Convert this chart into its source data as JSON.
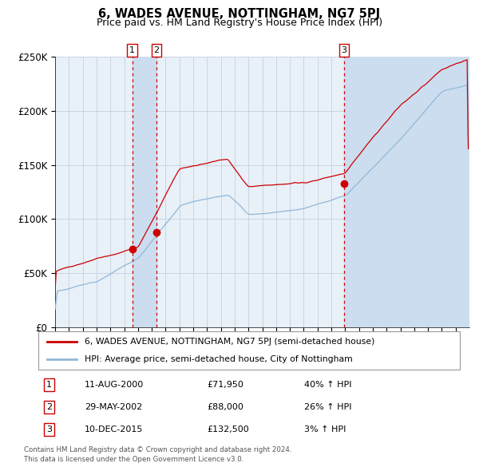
{
  "title": "6, WADES AVENUE, NOTTINGHAM, NG7 5PJ",
  "subtitle": "Price paid vs. HM Land Registry's House Price Index (HPI)",
  "legend_line1": "6, WADES AVENUE, NOTTINGHAM, NG7 5PJ (semi-detached house)",
  "legend_line2": "HPI: Average price, semi-detached house, City of Nottingham",
  "footer1": "Contains HM Land Registry data © Crown copyright and database right 2024.",
  "footer2": "This data is licensed under the Open Government Licence v3.0.",
  "transactions": [
    {
      "num": 1,
      "date": "11-AUG-2000",
      "price": 71950,
      "pct": "40%",
      "dir": "↑"
    },
    {
      "num": 2,
      "date": "29-MAY-2002",
      "price": 88000,
      "pct": "26%",
      "dir": "↑"
    },
    {
      "num": 3,
      "date": "10-DEC-2015",
      "price": 132500,
      "pct": "3%",
      "dir": "↑"
    }
  ],
  "hpi_color": "#90b8d8",
  "price_color": "#cc0000",
  "marker_color": "#cc0000",
  "vline_color": "#cc0000",
  "shade_color": "#ccddf0",
  "bg_color": "#e8f0f8",
  "grid_color": "#c0c8d8",
  "ylim": [
    0,
    250000
  ],
  "yticks": [
    0,
    50000,
    100000,
    150000,
    200000,
    250000
  ],
  "ytick_labels": [
    "£0",
    "£50K",
    "£100K",
    "£150K",
    "£200K",
    "£250K"
  ]
}
